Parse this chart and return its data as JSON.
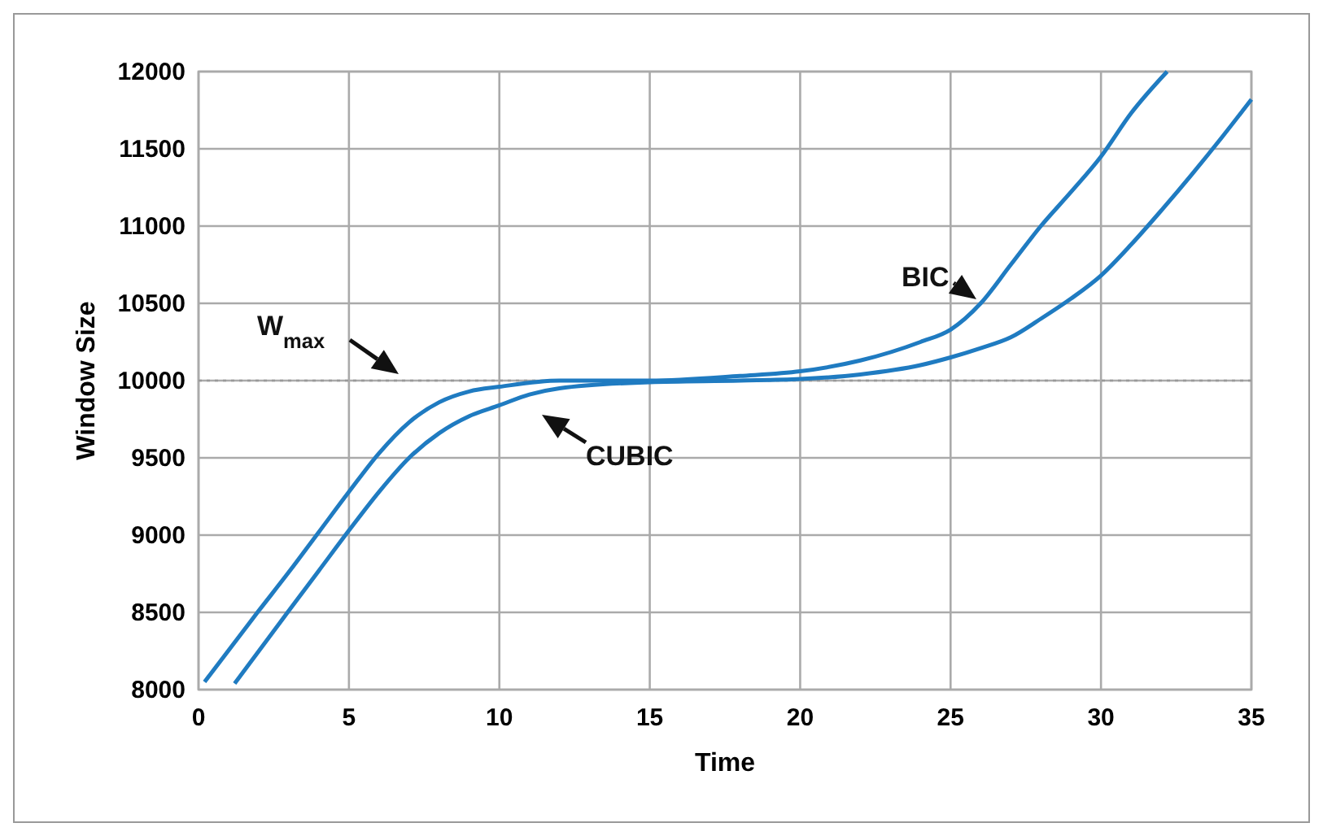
{
  "chart_data": {
    "type": "line",
    "xlabel": "Time",
    "ylabel": "Window Size",
    "xlim": [
      0,
      35
    ],
    "xticks": [
      0,
      5,
      10,
      15,
      20,
      25,
      30,
      35
    ],
    "ylim": [
      8000,
      12000
    ],
    "yticks": [
      8000,
      8500,
      9000,
      9500,
      10000,
      10500,
      11000,
      11500,
      12000
    ],
    "grid": true,
    "line_style": "solid",
    "marker": "none",
    "ref_lines": [
      {
        "axis": "y",
        "value": 10000,
        "label": "W$_{max}$",
        "color": "#999999",
        "line_style": "dotted"
      }
    ],
    "series": [
      {
        "name": "BIC",
        "color": "#1f7bc1",
        "x": [
          0.2,
          2,
          3,
          4,
          5,
          6,
          7,
          8,
          9,
          10,
          12,
          15,
          18,
          20,
          22,
          24,
          25,
          26,
          27,
          28,
          29,
          30,
          31,
          32.2
        ],
        "values": [
          8050,
          8510,
          8760,
          9020,
          9280,
          9530,
          9730,
          9860,
          9930,
          9960,
          10000,
          10000,
          10030,
          10060,
          10130,
          10250,
          10330,
          10500,
          10750,
          11000,
          11220,
          11450,
          11730,
          12000
        ]
      },
      {
        "name": "CUBIC",
        "color": "#1f7bc1",
        "x": [
          1.2,
          3,
          4,
          5,
          6,
          7,
          8,
          9,
          10,
          11,
          12,
          15,
          18,
          20,
          22,
          24,
          25,
          26,
          27,
          28,
          29,
          30,
          31,
          32,
          33,
          34,
          35
        ],
        "values": [
          8040,
          8510,
          8770,
          9030,
          9280,
          9500,
          9660,
          9770,
          9840,
          9910,
          9950,
          9990,
          10000,
          10010,
          10040,
          10100,
          10150,
          10210,
          10280,
          10400,
          10530,
          10680,
          10880,
          11100,
          11330,
          11570,
          11820
        ]
      }
    ]
  }
}
